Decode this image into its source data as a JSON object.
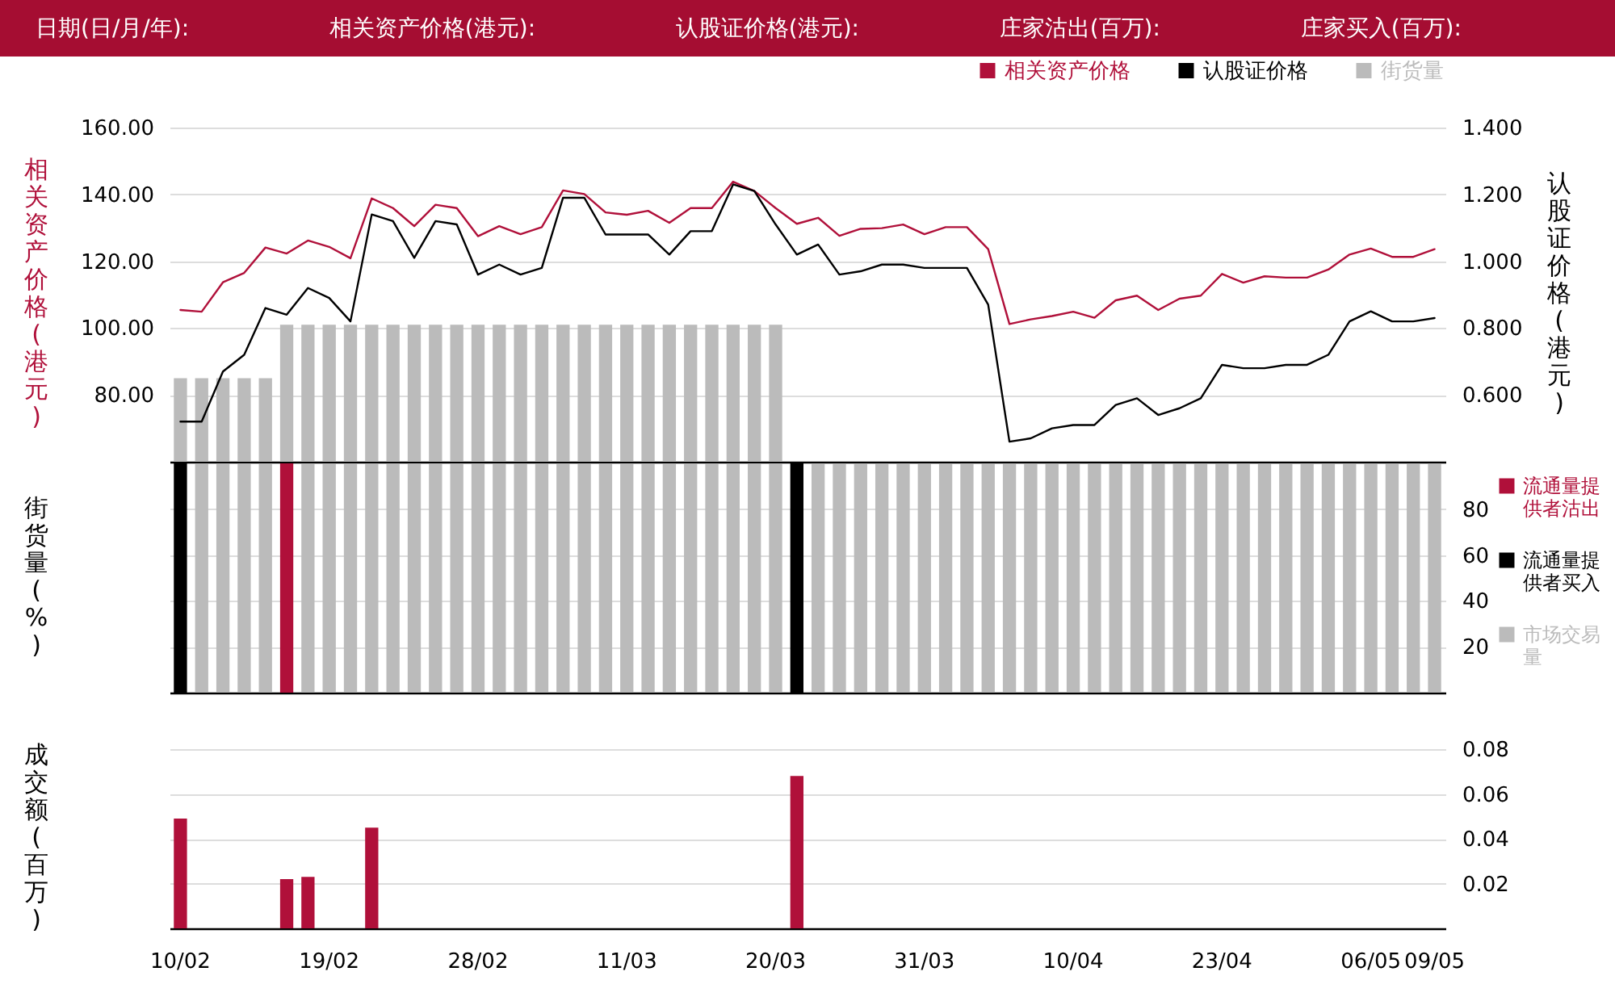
{
  "chart_data": [
    {
      "type": "line",
      "annotations": [
        "日期(日/月/年):",
        "相关资产价格(港元):",
        "认股证价格(港元):",
        "庄家沽出(百万):",
        "庄家买入(百万):"
      ],
      "categories": [
        null,
        null,
        null,
        null,
        null,
        null,
        null,
        null,
        null,
        null,
        null,
        null,
        null,
        null,
        null,
        null,
        null,
        null,
        null,
        null,
        null,
        null,
        null,
        null,
        null,
        null,
        null,
        null,
        null,
        null,
        null,
        null,
        null,
        null,
        null,
        null,
        null,
        null,
        null,
        null,
        null,
        null,
        null,
        null,
        null,
        null,
        null,
        null,
        null,
        null,
        null,
        null,
        null,
        null,
        null,
        null,
        null,
        null,
        null,
        null
      ],
      "series": [
        {
          "name": "相关资产价格",
          "color": "#b0103a",
          "values": [
            105.4,
            104.9,
            113.7,
            116.5,
            124.1,
            122.3,
            126.2,
            124.3,
            120.9,
            138.8,
            135.9,
            130.5,
            136.9,
            135.9,
            127.5,
            130.5,
            128.1,
            130.2,
            141.2,
            140.1,
            134.6,
            133.9,
            135.1,
            131.5,
            135.9,
            135.9,
            143.8,
            141.0,
            135.9,
            131.2,
            133.0,
            127.6,
            129.7,
            129.9,
            131.0,
            128.1,
            130.2,
            130.2,
            123.6,
            101.2,
            102.6,
            103.6,
            104.9,
            103.1,
            108.3,
            109.7,
            105.4,
            108.8,
            109.7,
            116.2,
            113.6,
            115.5,
            115.1,
            115.1,
            117.5,
            122.0,
            123.8,
            121.3,
            121.3,
            123.6
          ]
        },
        {
          "name": "认股证价格",
          "axis": "y2",
          "color": "#000000",
          "values": [
            0.52,
            0.52,
            0.67,
            0.72,
            0.86,
            0.84,
            0.92,
            0.89,
            0.82,
            1.14,
            1.12,
            1.01,
            1.12,
            1.11,
            0.96,
            0.99,
            0.96,
            0.98,
            1.19,
            1.19,
            1.08,
            1.08,
            1.08,
            1.02,
            1.09,
            1.09,
            1.23,
            1.21,
            1.11,
            1.02,
            1.05,
            0.96,
            0.97,
            0.99,
            0.99,
            0.98,
            0.98,
            0.98,
            0.87,
            0.46,
            0.47,
            0.5,
            0.51,
            0.51,
            0.57,
            0.59,
            0.54,
            0.56,
            0.59,
            0.69,
            0.68,
            0.68,
            0.69,
            0.69,
            0.72,
            0.82,
            0.85,
            0.82,
            0.82,
            0.83
          ]
        },
        {
          "name": "街货量",
          "type": "bar",
          "color": "#bbbbbb",
          "values": [
            85,
            85,
            85,
            85,
            85,
            101,
            101,
            101,
            101,
            101,
            101,
            101,
            101,
            101,
            101,
            101,
            101,
            101,
            101,
            101,
            101,
            101,
            101,
            101,
            101,
            101,
            101,
            101,
            101,
            null,
            null,
            null,
            null,
            null,
            null,
            null,
            null,
            null,
            null,
            null,
            null,
            null,
            null,
            null,
            null,
            null,
            null,
            null,
            null,
            null,
            null,
            null,
            null,
            null,
            null,
            null,
            null,
            null,
            null,
            null
          ]
        }
      ],
      "ylim": [
        60,
        160
      ],
      "yticks": [
        {
          "value": 80,
          "label": "80.00"
        },
        {
          "value": 100,
          "label": "100.00"
        },
        {
          "value": 120,
          "label": "120.00"
        },
        {
          "value": 140,
          "label": "140.00"
        },
        {
          "value": 160,
          "label": "160.00"
        }
      ],
      "y2lim": [
        0.4,
        1.4
      ],
      "y2ticks": [
        {
          "value": 0.6,
          "label": "0.600"
        },
        {
          "value": 0.8,
          "label": "0.800"
        },
        {
          "value": 1,
          "label": "1.000"
        },
        {
          "value": 1.2,
          "label": "1.200"
        },
        {
          "value": 1.4,
          "label": "1.400"
        }
      ],
      "ylabel": "相关资产价格(港元)",
      "y2label": "认股证价格(港元)",
      "legend": "top right",
      "grid": true,
      "tick_labels": "y"
    },
    {
      "type": "bar",
      "categories": [
        null,
        null,
        null,
        null,
        null,
        null,
        null,
        null,
        null,
        null,
        null,
        null,
        null,
        null,
        null,
        null,
        null,
        null,
        null,
        null,
        null,
        null,
        null,
        null,
        null,
        null,
        null,
        null,
        null,
        null,
        null,
        null,
        null,
        null,
        null,
        null,
        null,
        null,
        null,
        null,
        null,
        null,
        null,
        null,
        null,
        null,
        null,
        null,
        null,
        null,
        null,
        null,
        null,
        null,
        null,
        null,
        null,
        null,
        null,
        null
      ],
      "series": [
        {
          "name": "流通量提供者沽出",
          "color": "#b0103a",
          "values": [
            null,
            null,
            null,
            null,
            null,
            100,
            null,
            null,
            null,
            null,
            null,
            null,
            null,
            null,
            null,
            null,
            null,
            null,
            null,
            null,
            null,
            null,
            null,
            null,
            null,
            null,
            null,
            null,
            null,
            null,
            null,
            null,
            null,
            null,
            null,
            null,
            null,
            null,
            null,
            null,
            null,
            null,
            null,
            null,
            null,
            null,
            null,
            null,
            null,
            null,
            null,
            null,
            null,
            null,
            null,
            null,
            null,
            null,
            null,
            null
          ]
        },
        {
          "name": "流通量提供者买入",
          "color": "#000000",
          "values": [
            100,
            null,
            null,
            null,
            null,
            null,
            null,
            null,
            null,
            null,
            null,
            null,
            null,
            null,
            null,
            null,
            null,
            null,
            null,
            null,
            null,
            null,
            null,
            null,
            null,
            null,
            null,
            null,
            null,
            100,
            null,
            null,
            null,
            null,
            null,
            null,
            null,
            null,
            null,
            null,
            null,
            null,
            null,
            null,
            null,
            null,
            null,
            null,
            null,
            null,
            null,
            null,
            null,
            null,
            null,
            null,
            null,
            null,
            null,
            null
          ]
        },
        {
          "name": "市场交易量",
          "color": "#bbbbbb",
          "values": [
            null,
            100,
            100,
            100,
            100,
            null,
            100,
            100,
            100,
            100,
            100,
            100,
            100,
            100,
            100,
            100,
            100,
            100,
            100,
            100,
            100,
            100,
            100,
            100,
            100,
            100,
            100,
            100,
            100,
            null,
            100,
            100,
            100,
            100,
            100,
            100,
            100,
            100,
            100,
            100,
            100,
            100,
            100,
            100,
            100,
            100,
            100,
            100,
            100,
            100,
            100,
            100,
            100,
            100,
            100,
            100,
            100,
            100,
            100,
            100
          ]
        }
      ],
      "ylim": [
        0,
        100
      ],
      "yticks": [
        20,
        40,
        60,
        80
      ],
      "ylabel": "街货量(%)",
      "legend": "right",
      "grid": true,
      "tick_labels": "y"
    },
    {
      "type": "bar",
      "categories": [
        "10/02",
        null,
        null,
        null,
        null,
        null,
        null,
        "19/02",
        null,
        null,
        null,
        null,
        null,
        null,
        "28/02",
        null,
        null,
        null,
        null,
        null,
        null,
        "11/03",
        null,
        null,
        null,
        null,
        null,
        null,
        "20/03",
        null,
        null,
        null,
        null,
        null,
        null,
        "31/03",
        null,
        null,
        null,
        null,
        null,
        null,
        "10/04",
        null,
        null,
        null,
        null,
        null,
        null,
        "23/04",
        null,
        null,
        null,
        null,
        null,
        null,
        "06/05",
        null,
        null,
        "09/05"
      ],
      "values": [
        0.049,
        null,
        null,
        null,
        null,
        0.022,
        0.023,
        null,
        null,
        0.045,
        null,
        null,
        null,
        null,
        null,
        null,
        null,
        null,
        null,
        null,
        null,
        null,
        null,
        null,
        null,
        null,
        null,
        null,
        null,
        0.068,
        null,
        null,
        null,
        null,
        null,
        null,
        null,
        null,
        null,
        null,
        null,
        null,
        null,
        null,
        null,
        null,
        null,
        null,
        null,
        null,
        null,
        null,
        null,
        null,
        null,
        null,
        null,
        null,
        null,
        null
      ],
      "color": "#b0103a",
      "ylim": [
        0,
        0.08
      ],
      "yticks": [
        0.02,
        0.04,
        0.06,
        0.08
      ],
      "ylabel": "成交额(百万)",
      "grid": true
    }
  ]
}
